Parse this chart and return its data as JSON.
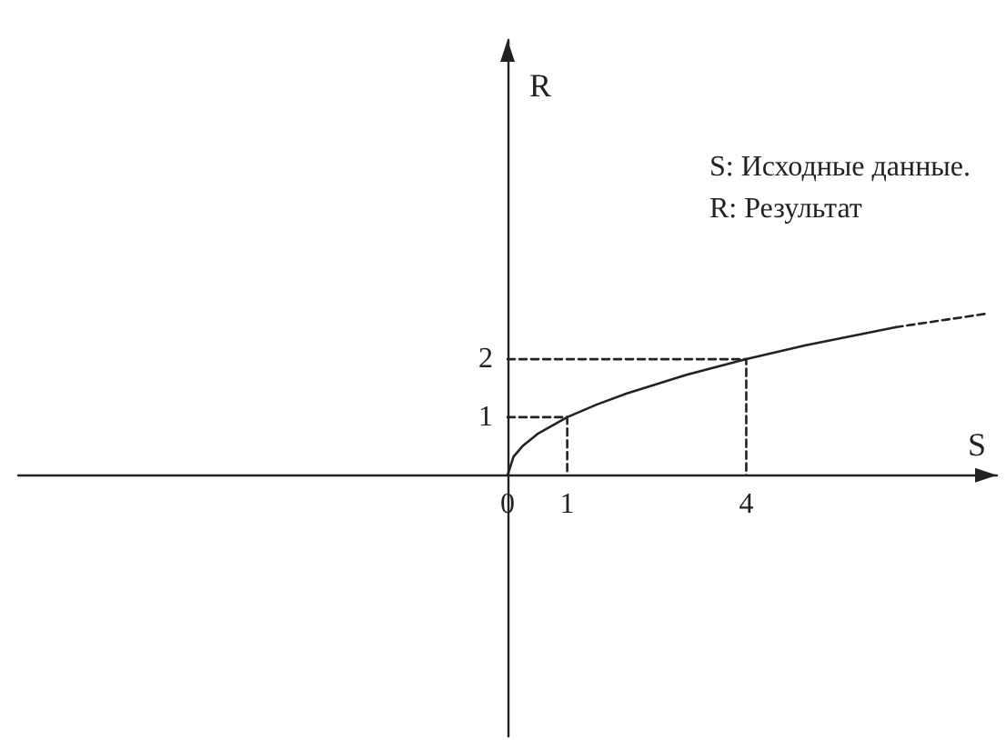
{
  "chart_data": {
    "type": "line",
    "xlabel": "S",
    "ylabel": "R",
    "annotations": [
      "S: Исходные данные.",
      "R: Результат"
    ],
    "xlim": [
      -8.2,
      8.2
    ],
    "ylim": [
      -4.5,
      7.5
    ],
    "xticks": [
      0,
      1,
      4
    ],
    "yticks": [
      1,
      2
    ],
    "marker": "none",
    "series": [
      {
        "color": "#222222",
        "line_style": "solid",
        "x": [
          0,
          0.1,
          0.25,
          0.5,
          1,
          1.5,
          2,
          3,
          4,
          5,
          6.5
        ],
        "values": [
          0,
          0.32,
          0.5,
          0.71,
          1,
          1.22,
          1.41,
          1.73,
          2,
          2.24,
          2.55
        ]
      },
      {
        "color": "#222222",
        "line_style": "dashed",
        "x": [
          6.5,
          8
        ],
        "values": [
          2.55,
          2.78
        ]
      },
      {
        "color": "#222222",
        "line_style": "dashed",
        "x": [
          0,
          1,
          1
        ],
        "values": [
          1,
          1,
          0
        ]
      },
      {
        "color": "#222222",
        "line_style": "dashed",
        "x": [
          0,
          4,
          4
        ],
        "values": [
          2,
          2,
          0
        ]
      }
    ]
  }
}
